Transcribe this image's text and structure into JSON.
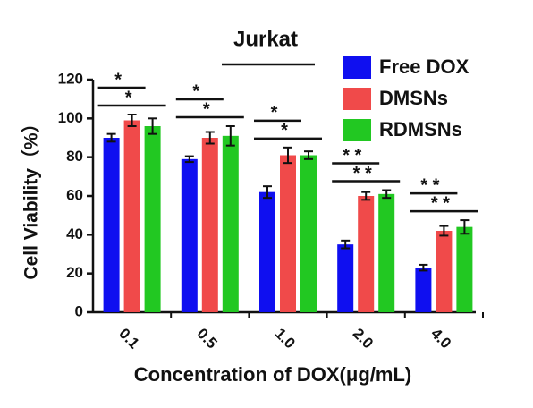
{
  "chart_data": {
    "type": "bar",
    "title": "Jurkat",
    "y_label": "Cell Viability（%）",
    "x_label": "Concentration of  DOX(μg/mL)",
    "categories": [
      "0.1",
      "0.5",
      "1.0",
      "2.0",
      "4.0"
    ],
    "series": [
      {
        "name": "Free DOX",
        "color": "#0f0ff0",
        "values": [
          90,
          79,
          62,
          35,
          23
        ],
        "errors": [
          2,
          1.5,
          3,
          2,
          1.5
        ]
      },
      {
        "name": "DMSNs",
        "color": "#f04a4a",
        "values": [
          99,
          90,
          81,
          60,
          42
        ],
        "errors": [
          3,
          3,
          4,
          2,
          2.5
        ]
      },
      {
        "name": "RDMSNs",
        "color": "#22c822",
        "values": [
          96,
          91,
          81,
          61,
          44
        ],
        "errors": [
          4,
          5,
          2,
          2,
          3.5
        ]
      }
    ],
    "significance": [
      [
        "*",
        "*"
      ],
      [
        "*",
        "*"
      ],
      [
        "*",
        "*"
      ],
      [
        "* *",
        "* *"
      ],
      [
        "* *",
        "* *"
      ]
    ],
    "ylim": [
      0,
      120
    ],
    "yticks": [
      0,
      20,
      40,
      60,
      80,
      100,
      120
    ]
  }
}
